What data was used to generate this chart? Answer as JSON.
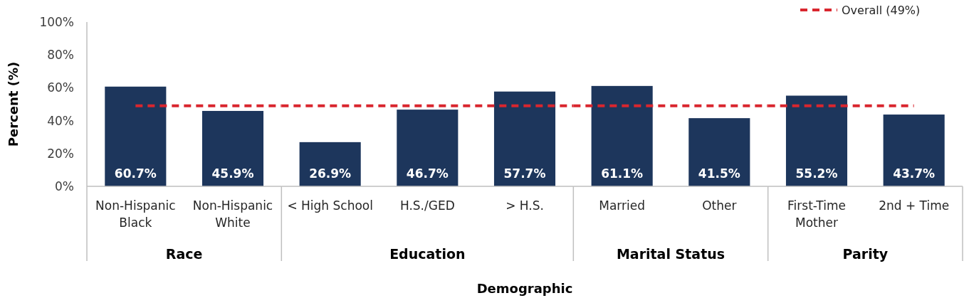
{
  "chart_data": [
    {
      "type": "bar",
      "xlabel": "Race",
      "ylabel": "Percent (%)",
      "categories": [
        "Non-Hispanic Black",
        "Non-Hispanic White"
      ],
      "series": [
        {
          "color": "#1d365c",
          "values": [
            60.7,
            45.9
          ]
        }
      ],
      "value_labels": [
        "60.7%",
        "45.9%"
      ],
      "ylim": [
        0,
        100
      ],
      "yticks": [
        {
          "value": 0,
          "label": "0%"
        },
        {
          "value": 20,
          "label": "20%"
        },
        {
          "value": 40,
          "label": "40%"
        },
        {
          "value": 60,
          "label": "60%"
        },
        {
          "value": 80,
          "label": "80%"
        },
        {
          "value": 100,
          "label": "100%"
        }
      ],
      "ref_lines": [
        {
          "axis": "y",
          "value": 49,
          "label": "Overall (49%)",
          "color": "#d9262e",
          "line_style": "dashed"
        }
      ],
      "legend": "top right",
      "annotations": [
        "Demographic"
      ]
    },
    {
      "type": "bar",
      "xlabel": "Education",
      "categories": [
        "< High School",
        "H.S./GED",
        "> H.S."
      ],
      "series": [
        {
          "color": "#1d365c",
          "values": [
            26.9,
            46.7,
            57.7
          ]
        }
      ],
      "value_labels": [
        "26.9%",
        "46.7%",
        "57.7%"
      ],
      "ylim": [
        0,
        100
      ],
      "tick_labels": "x",
      "ref_lines": [
        {
          "axis": "y",
          "value": 49,
          "color": "#d9262e",
          "line_style": "dashed"
        }
      ]
    },
    {
      "type": "bar",
      "xlabel": "Marital Status",
      "categories": [
        "Married",
        "Other"
      ],
      "series": [
        {
          "color": "#1d365c",
          "values": [
            61.1,
            41.5
          ]
        }
      ],
      "value_labels": [
        "61.1%",
        "41.5%"
      ],
      "ylim": [
        0,
        100
      ],
      "tick_labels": "x",
      "ref_lines": [
        {
          "axis": "y",
          "value": 49,
          "color": "#d9262e",
          "line_style": "dashed"
        }
      ]
    },
    {
      "type": "bar",
      "xlabel": "Parity",
      "categories": [
        "First-Time Mother",
        "2nd + Time"
      ],
      "series": [
        {
          "color": "#1d365c",
          "values": [
            55.2,
            43.7
          ]
        }
      ],
      "value_labels": [
        "55.2%",
        "43.7%"
      ],
      "ylim": [
        0,
        100
      ],
      "tick_labels": "x",
      "ref_lines": [
        {
          "axis": "y",
          "value": 49,
          "color": "#d9262e",
          "line_style": "dashed"
        }
      ]
    }
  ]
}
